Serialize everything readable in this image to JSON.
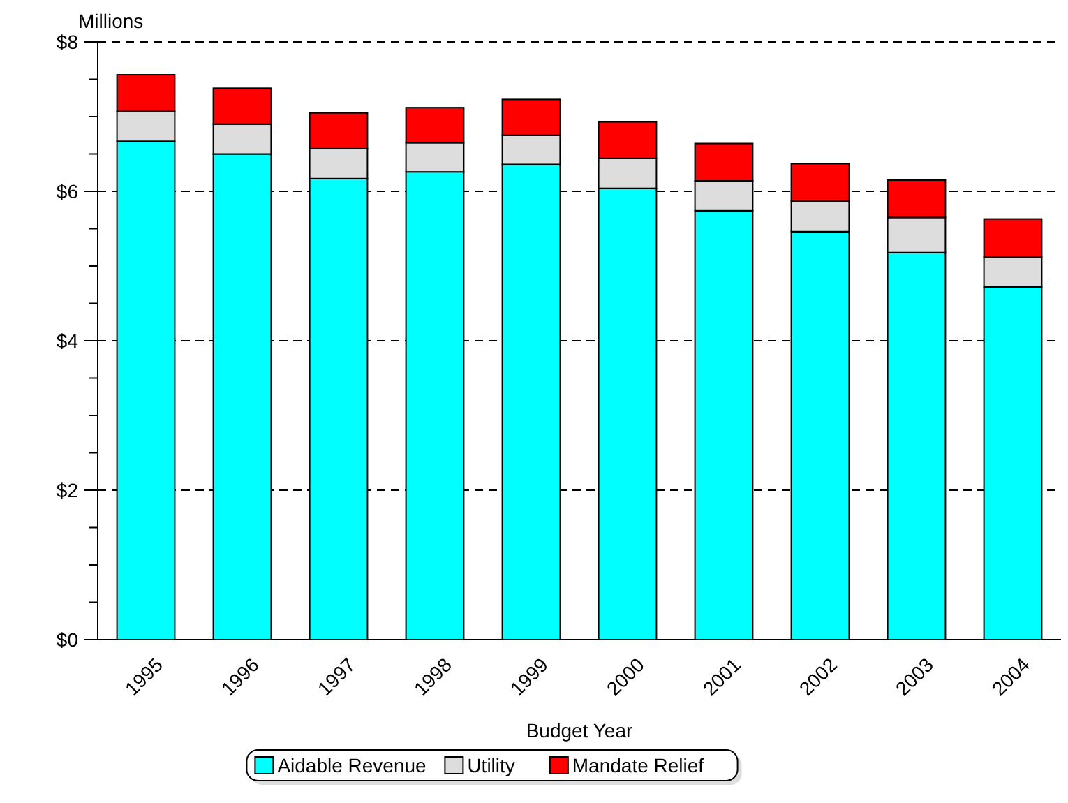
{
  "chart_data": {
    "type": "bar",
    "stacked": true,
    "ylabel": "Millions",
    "xlabel": "Budget Year",
    "categories": [
      "1995",
      "1996",
      "1997",
      "1998",
      "1999",
      "2000",
      "2001",
      "2002",
      "2003",
      "2004"
    ],
    "series": [
      {
        "name": "Aidable Revenue",
        "color": "#00ffff",
        "values": [
          6.67,
          6.5,
          6.17,
          6.26,
          6.36,
          6.04,
          5.74,
          5.46,
          5.18,
          4.72
        ]
      },
      {
        "name": "Utility",
        "color": "#dddddd",
        "values": [
          0.4,
          0.4,
          0.4,
          0.39,
          0.39,
          0.4,
          0.4,
          0.41,
          0.47,
          0.4
        ]
      },
      {
        "name": "Mandate Relief",
        "color": "#ff0000",
        "values": [
          0.49,
          0.48,
          0.48,
          0.47,
          0.48,
          0.49,
          0.5,
          0.5,
          0.5,
          0.51
        ]
      }
    ],
    "ylim": [
      0,
      8
    ],
    "yticks": [
      {
        "value": 0,
        "label": "$0"
      },
      {
        "value": 0.5,
        "label": null
      },
      {
        "value": 1,
        "label": null
      },
      {
        "value": 1.5,
        "label": null
      },
      {
        "value": 2,
        "label": "$2"
      },
      {
        "value": 2.5,
        "label": null
      },
      {
        "value": 3,
        "label": null
      },
      {
        "value": 3.5,
        "label": null
      },
      {
        "value": 4,
        "label": "$4"
      },
      {
        "value": 4.5,
        "label": null
      },
      {
        "value": 5,
        "label": null
      },
      {
        "value": 5.5,
        "label": null
      },
      {
        "value": 6,
        "label": "$6"
      },
      {
        "value": 6.5,
        "label": null
      },
      {
        "value": 7,
        "label": null
      },
      {
        "value": 7.5,
        "label": null
      },
      {
        "value": 8,
        "label": "$8"
      }
    ],
    "grid": "y",
    "legend": "bottom"
  }
}
